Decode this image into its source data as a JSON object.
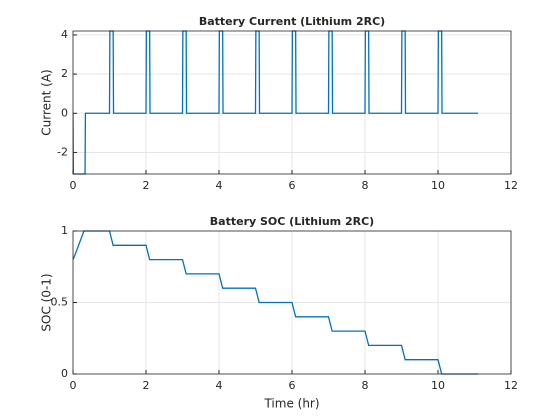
{
  "chart_data": [
    {
      "type": "line",
      "title": "Battery Current (Lithium 2RC)",
      "ylabel": "Current (A)",
      "xlim": [
        0,
        12
      ],
      "xticks": [
        0,
        2,
        4,
        6,
        8,
        10,
        12
      ],
      "ylim": [
        -3.1,
        4.2
      ],
      "yticks": [
        -2,
        0,
        2,
        4
      ],
      "grid": true,
      "series": [
        {
          "color": "#0072bd",
          "x": [
            0,
            0.01,
            0.33,
            0.34,
            1.0,
            1.01,
            1.1,
            1.11,
            2.0,
            2.01,
            2.1,
            2.11,
            3.0,
            3.01,
            3.1,
            3.11,
            4.0,
            4.01,
            4.1,
            4.11,
            5.0,
            5.01,
            5.1,
            5.11,
            6.0,
            6.01,
            6.1,
            6.11,
            7.0,
            7.01,
            7.1,
            7.11,
            8.0,
            8.01,
            8.1,
            8.11,
            9.0,
            9.01,
            9.1,
            9.11,
            10.0,
            10.01,
            10.1,
            10.11,
            11.1
          ],
          "values": [
            0,
            -3.1,
            -3.1,
            0,
            0,
            4.2,
            4.2,
            0,
            0,
            4.2,
            4.2,
            0,
            0,
            4.2,
            4.2,
            0,
            0,
            4.2,
            4.2,
            0,
            0,
            4.2,
            4.2,
            0,
            0,
            4.2,
            4.2,
            0,
            0,
            4.2,
            4.2,
            0,
            0,
            4.2,
            4.2,
            0,
            0,
            4.2,
            4.2,
            0,
            0,
            4.2,
            4.2,
            0,
            0
          ]
        }
      ]
    },
    {
      "type": "line",
      "title": "Battery SOC (Lithium 2RC)",
      "ylabel": "SOC (0-1)",
      "xlabel": "Time (hr)",
      "xlim": [
        0,
        12
      ],
      "xticks": [
        0,
        2,
        4,
        6,
        8,
        10,
        12
      ],
      "ylim": [
        0,
        1
      ],
      "yticks": [
        0,
        0.5,
        1
      ],
      "grid": true,
      "series": [
        {
          "color": "#0072bd",
          "x": [
            0,
            0.05,
            0.3,
            1.0,
            1.1,
            2.0,
            2.1,
            3.0,
            3.1,
            4.0,
            4.1,
            5.0,
            5.1,
            6.0,
            6.1,
            7.0,
            7.1,
            8.0,
            8.1,
            9.0,
            9.1,
            10.0,
            10.1,
            11.1
          ],
          "values": [
            0.8,
            0.83,
            1,
            1,
            0.9,
            0.9,
            0.8,
            0.8,
            0.7,
            0.7,
            0.6,
            0.6,
            0.5,
            0.5,
            0.4,
            0.4,
            0.3,
            0.3,
            0.2,
            0.2,
            0.1,
            0.1,
            0,
            0
          ]
        }
      ]
    }
  ]
}
